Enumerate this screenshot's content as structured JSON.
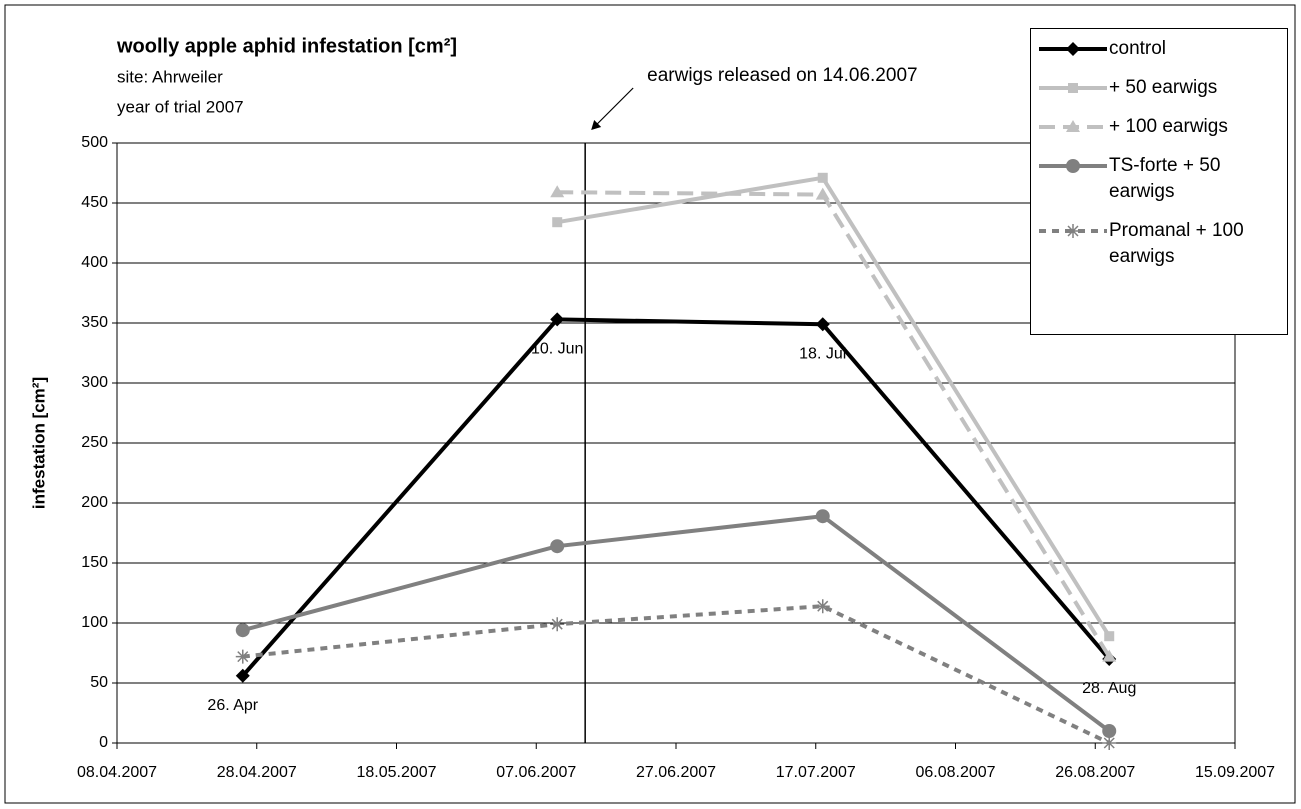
{
  "chart_data": {
    "type": "line",
    "title": "woolly apple aphid infestation  [cm²]",
    "subtitle": [
      "site: Ahrweiler",
      "year of trial 2007"
    ],
    "y_label": "infestation [cm²]",
    "annotation": {
      "text": "earwigs released on 14.06.2007",
      "x": "2007-06-14"
    },
    "x": [
      "2007-04-26",
      "2007-06-10",
      "2007-07-18",
      "2007-08-28"
    ],
    "point_labels": [
      "26. Apr",
      "10. Jun",
      "18. Jul",
      "28. Aug"
    ],
    "series": [
      {
        "name": "control",
        "color": "#000000",
        "dash": "solid",
        "marker": "diamond",
        "values": [
          56,
          353,
          349,
          70
        ]
      },
      {
        "name": "+ 50 earwigs",
        "color": "#c0c0c0",
        "dash": "solid",
        "marker": "square",
        "values": [
          null,
          434,
          471,
          89
        ]
      },
      {
        "name": "+ 100 earwigs",
        "color": "#c0c0c0",
        "dash": "dashed",
        "marker": "triangle",
        "values": [
          null,
          459,
          457,
          72
        ]
      },
      {
        "name": "TS-forte + 50 earwigs",
        "color": "#808080",
        "dash": "solid",
        "marker": "circle",
        "values": [
          94,
          164,
          189,
          10
        ]
      },
      {
        "name": "Promanal + 100 earwigs",
        "color": "#808080",
        "dash": "dotted",
        "marker": "asterisk",
        "values": [
          72,
          99,
          114,
          0
        ]
      }
    ],
    "xlim": [
      "2007-04-08",
      "2007-09-15"
    ],
    "xticks": [
      {
        "value": "2007-04-08",
        "label": "08.04.2007"
      },
      {
        "value": "2007-04-28",
        "label": "28.04.2007"
      },
      {
        "value": "2007-05-18",
        "label": "18.05.2007"
      },
      {
        "value": "2007-06-07",
        "label": "07.06.2007"
      },
      {
        "value": "2007-06-27",
        "label": "27.06.2007"
      },
      {
        "value": "2007-07-17",
        "label": "17.07.2007"
      },
      {
        "value": "2007-08-06",
        "label": "06.08.2007"
      },
      {
        "value": "2007-08-26",
        "label": "26.08.2007"
      },
      {
        "value": "2007-09-15",
        "label": "15.09.2007"
      }
    ],
    "ylim": [
      0,
      500
    ],
    "yticks": [
      0,
      50,
      100,
      150,
      200,
      250,
      300,
      350,
      400,
      450,
      500
    ],
    "grid": true,
    "legend": "upper right"
  }
}
